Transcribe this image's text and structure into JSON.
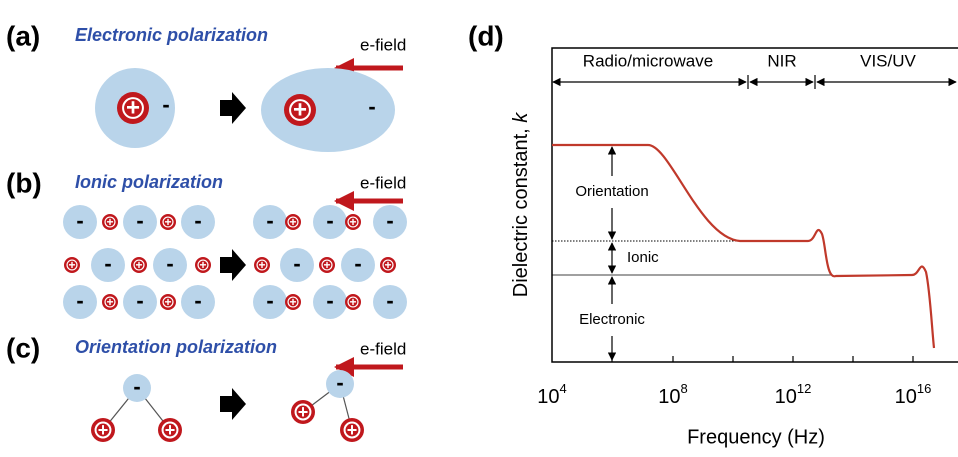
{
  "panels": [
    {
      "label": "(a)",
      "title": "Electronic polarization",
      "field": "e-field"
    },
    {
      "label": "(b)",
      "title": "Ionic polarization",
      "field": "e-field"
    },
    {
      "label": "(c)",
      "title": "Orientation polarization",
      "field": "e-field"
    }
  ],
  "charge": {
    "plus": "+",
    "minus": "-"
  },
  "chart": {
    "label": "(d)",
    "regions": [
      "Radio/microwave",
      "NIR",
      "VIS/UV"
    ],
    "y_label": "Dielectric constant, ",
    "y_symbol": "k",
    "x_label": "Frequency (Hz)",
    "x_ticks": [
      {
        "base": "10",
        "exponent": "4"
      },
      {
        "base": "10",
        "exponent": "8"
      },
      {
        "base": "10",
        "exponent": "12"
      },
      {
        "base": "10",
        "exponent": "16"
      }
    ],
    "annotations": [
      "Orientation",
      "Ionic",
      "Electronic"
    ]
  }
}
